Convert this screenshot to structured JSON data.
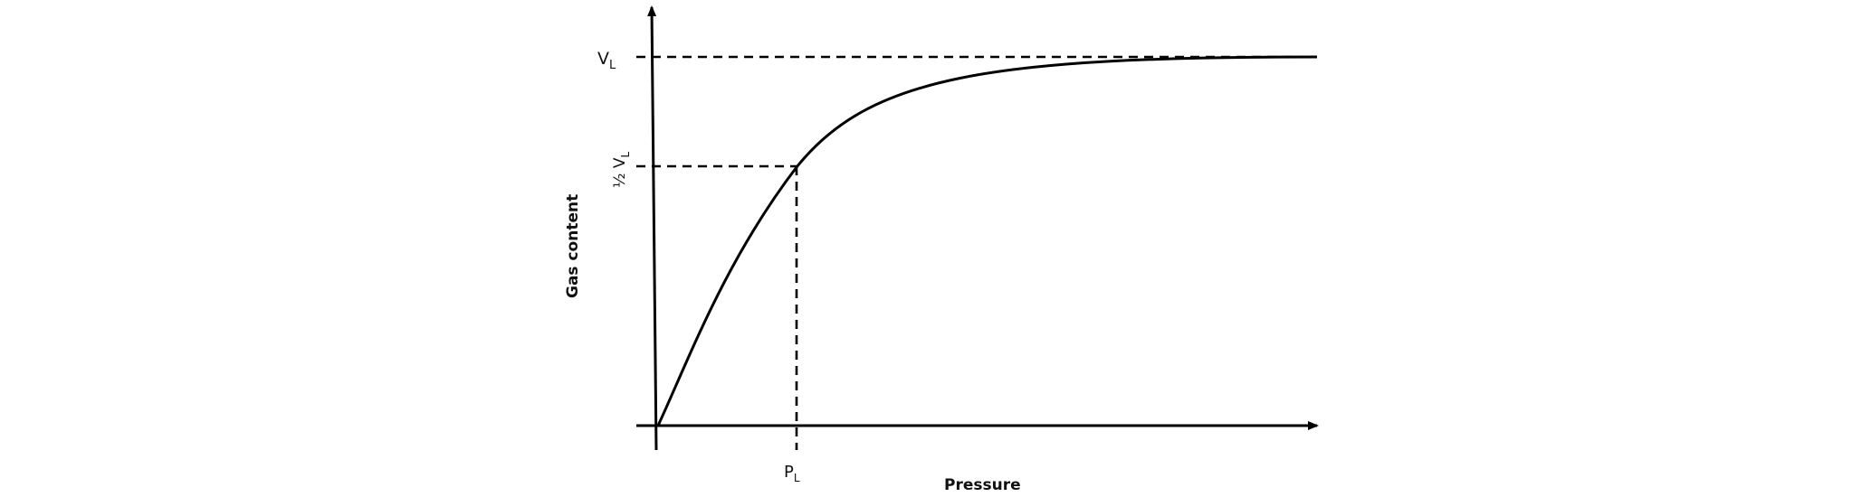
{
  "diagram": {
    "y_axis_title": "Gas content",
    "x_axis_title": "Pressure",
    "vl_label": "V",
    "vl_sub": "L",
    "half_vl_label": "½ V",
    "half_vl_sub": "L",
    "pl_label": "P",
    "pl_sub": "L"
  },
  "colors": {
    "line": "#000000",
    "text": "#111111",
    "background": "#ffffff"
  }
}
